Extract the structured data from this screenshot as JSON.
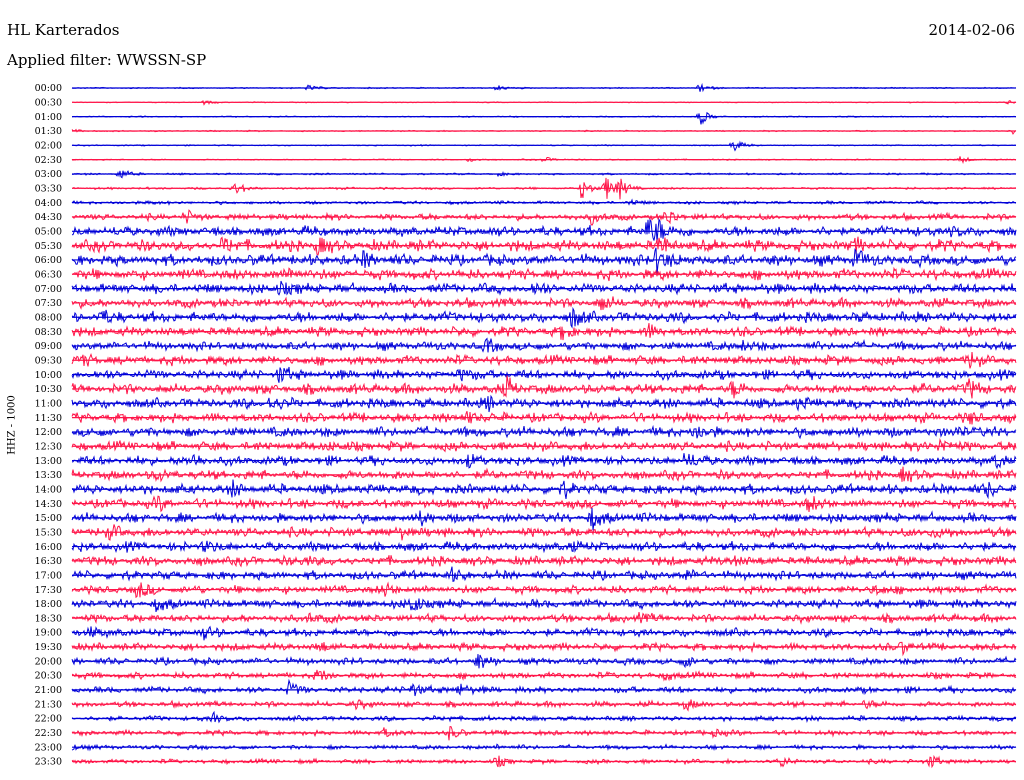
{
  "header": {
    "station": "HL Karterados",
    "date": "2014-02-06",
    "filter_label": "Applied filter: WWSSN-SP"
  },
  "colors": {
    "trace_a": "#0000d8",
    "trace_b": "#ff1448",
    "text": "#000000",
    "background": "#ffffff"
  },
  "chart_data": {
    "type": "line",
    "subtype": "helicorder",
    "title": "HL Karterados",
    "ylabel": "HHZ - 1000",
    "xlabel": "",
    "grid": false,
    "legend": "none",
    "row_minutes": 30,
    "row_labels": [
      "00:00",
      "00:30",
      "01:00",
      "01:30",
      "02:00",
      "02:30",
      "03:00",
      "03:30",
      "04:00",
      "04:30",
      "05:00",
      "05:30",
      "06:00",
      "06:30",
      "07:00",
      "07:30",
      "08:00",
      "08:30",
      "09:00",
      "09:30",
      "10:00",
      "10:30",
      "11:00",
      "11:30",
      "12:00",
      "12:30",
      "13:00",
      "13:30",
      "14:00",
      "14:30",
      "15:00",
      "15:30",
      "16:00",
      "16:30",
      "17:00",
      "17:30",
      "18:00",
      "18:30",
      "19:00",
      "19:30",
      "20:00",
      "20:30",
      "21:00",
      "21:30",
      "22:00",
      "22:30",
      "23:00",
      "23:30"
    ],
    "row_color_cycle": [
      "trace_a",
      "trace_b"
    ],
    "noise_level": [
      0.4,
      0.3,
      0.4,
      0.4,
      0.4,
      0.4,
      0.6,
      0.7,
      1.0,
      2.0,
      3.2,
      3.6,
      3.6,
      3.4,
      3.2,
      3.0,
      3.4,
      3.0,
      2.8,
      3.0,
      3.0,
      3.2,
      3.2,
      3.0,
      3.2,
      3.0,
      3.0,
      3.0,
      3.2,
      3.0,
      3.0,
      3.0,
      3.0,
      3.0,
      2.8,
      2.6,
      2.8,
      2.6,
      2.6,
      2.4,
      2.2,
      2.0,
      2.0,
      1.8,
      1.6,
      1.6,
      1.4,
      1.4
    ],
    "events": [
      {
        "row": 0,
        "t": 0.25,
        "amp": 3
      },
      {
        "row": 0,
        "t": 0.45,
        "amp": 3
      },
      {
        "row": 0,
        "t": 0.665,
        "amp": 4
      },
      {
        "row": 1,
        "t": 0.14,
        "amp": 2
      },
      {
        "row": 1,
        "t": 0.99,
        "amp": 2
      },
      {
        "row": 2,
        "t": 0.665,
        "amp": 9
      },
      {
        "row": 3,
        "t": 0.0,
        "amp": 2
      },
      {
        "row": 3,
        "t": 0.995,
        "amp": 3
      },
      {
        "row": 4,
        "t": 0.7,
        "amp": 7
      },
      {
        "row": 5,
        "t": 0.42,
        "amp": 2
      },
      {
        "row": 5,
        "t": 0.5,
        "amp": 3
      },
      {
        "row": 5,
        "t": 0.94,
        "amp": 4
      },
      {
        "row": 6,
        "t": 0.05,
        "amp": 6
      },
      {
        "row": 6,
        "t": 0.45,
        "amp": 2
      },
      {
        "row": 7,
        "t": 0.17,
        "amp": 3
      },
      {
        "row": 7,
        "t": 0.175,
        "amp": 4
      },
      {
        "row": 7,
        "t": 0.54,
        "amp": 11
      },
      {
        "row": 7,
        "t": 0.565,
        "amp": 13
      },
      {
        "row": 7,
        "t": 0.58,
        "amp": 9
      },
      {
        "row": 8,
        "t": 0.59,
        "amp": 3
      },
      {
        "row": 8,
        "t": 0.08,
        "amp": 2
      },
      {
        "row": 9,
        "t": 0.12,
        "amp": 6
      },
      {
        "row": 9,
        "t": 0.55,
        "amp": 7
      },
      {
        "row": 9,
        "t": 0.63,
        "amp": 8
      },
      {
        "row": 10,
        "t": 0.61,
        "amp": 13
      },
      {
        "row": 10,
        "t": 0.62,
        "amp": 10
      },
      {
        "row": 10,
        "t": 0.93,
        "amp": 4
      },
      {
        "row": 11,
        "t": 0.16,
        "amp": 7
      },
      {
        "row": 11,
        "t": 0.26,
        "amp": 8
      },
      {
        "row": 11,
        "t": 0.62,
        "amp": 9
      },
      {
        "row": 11,
        "t": 0.83,
        "amp": 5
      },
      {
        "row": 12,
        "t": 0.31,
        "amp": 7
      },
      {
        "row": 12,
        "t": 0.62,
        "amp": 14
      },
      {
        "row": 12,
        "t": 0.83,
        "amp": 9
      },
      {
        "row": 13,
        "t": 0.23,
        "amp": 6
      },
      {
        "row": 14,
        "t": 0.22,
        "amp": 7
      },
      {
        "row": 14,
        "t": 0.49,
        "amp": 5
      },
      {
        "row": 15,
        "t": 0.56,
        "amp": 8
      },
      {
        "row": 16,
        "t": 0.53,
        "amp": 9
      },
      {
        "row": 16,
        "t": 0.03,
        "amp": 6
      },
      {
        "row": 17,
        "t": 0.52,
        "amp": 8
      },
      {
        "row": 17,
        "t": 0.61,
        "amp": 6
      },
      {
        "row": 18,
        "t": 0.44,
        "amp": 6
      },
      {
        "row": 18,
        "t": 0.71,
        "amp": 5
      },
      {
        "row": 19,
        "t": 0.95,
        "amp": 7
      },
      {
        "row": 19,
        "t": 0.01,
        "amp": 4
      },
      {
        "row": 20,
        "t": 0.22,
        "amp": 8
      },
      {
        "row": 20,
        "t": 0.41,
        "amp": 6
      },
      {
        "row": 21,
        "t": 0.46,
        "amp": 10
      },
      {
        "row": 21,
        "t": 0.7,
        "amp": 7
      },
      {
        "row": 21,
        "t": 0.95,
        "amp": 8
      },
      {
        "row": 22,
        "t": 0.21,
        "amp": 7
      },
      {
        "row": 22,
        "t": 0.44,
        "amp": 6
      },
      {
        "row": 22,
        "t": 0.77,
        "amp": 5
      },
      {
        "row": 23,
        "t": 0.42,
        "amp": 6
      },
      {
        "row": 23,
        "t": 0.95,
        "amp": 5
      },
      {
        "row": 24,
        "t": 0.66,
        "amp": 7
      },
      {
        "row": 24,
        "t": 0.94,
        "amp": 5
      },
      {
        "row": 25,
        "t": 0.92,
        "amp": 9
      },
      {
        "row": 25,
        "t": 0.27,
        "amp": 5
      },
      {
        "row": 26,
        "t": 0.13,
        "amp": 6
      },
      {
        "row": 26,
        "t": 0.42,
        "amp": 5
      },
      {
        "row": 26,
        "t": 0.65,
        "amp": 8
      },
      {
        "row": 26,
        "t": 0.98,
        "amp": 7
      },
      {
        "row": 27,
        "t": 0.88,
        "amp": 6
      },
      {
        "row": 27,
        "t": 0.09,
        "amp": 5
      },
      {
        "row": 28,
        "t": 0.17,
        "amp": 6
      },
      {
        "row": 28,
        "t": 0.52,
        "amp": 7
      },
      {
        "row": 28,
        "t": 0.97,
        "amp": 6
      },
      {
        "row": 29,
        "t": 0.09,
        "amp": 6
      },
      {
        "row": 29,
        "t": 0.78,
        "amp": 7
      },
      {
        "row": 30,
        "t": 0.55,
        "amp": 10
      },
      {
        "row": 30,
        "t": 0.37,
        "amp": 5
      },
      {
        "row": 31,
        "t": 0.04,
        "amp": 6
      },
      {
        "row": 31,
        "t": 0.35,
        "amp": 5
      },
      {
        "row": 31,
        "t": 0.91,
        "amp": 5
      },
      {
        "row": 32,
        "t": 0.14,
        "amp": 6
      },
      {
        "row": 32,
        "t": 0.53,
        "amp": 5
      },
      {
        "row": 33,
        "t": 0.25,
        "amp": 4
      },
      {
        "row": 33,
        "t": 0.7,
        "amp": 5
      },
      {
        "row": 34,
        "t": 0.4,
        "amp": 6
      },
      {
        "row": 34,
        "t": 0.65,
        "amp": 4
      },
      {
        "row": 35,
        "t": 0.07,
        "amp": 8
      },
      {
        "row": 35,
        "t": 0.33,
        "amp": 6
      },
      {
        "row": 35,
        "t": 0.85,
        "amp": 6
      },
      {
        "row": 36,
        "t": 0.36,
        "amp": 10
      },
      {
        "row": 36,
        "t": 0.09,
        "amp": 5
      },
      {
        "row": 37,
        "t": 0.25,
        "amp": 5
      },
      {
        "row": 37,
        "t": 0.6,
        "amp": 4
      },
      {
        "row": 38,
        "t": 0.02,
        "amp": 6
      },
      {
        "row": 38,
        "t": 0.14,
        "amp": 5
      },
      {
        "row": 39,
        "t": 0.26,
        "amp": 5
      },
      {
        "row": 39,
        "t": 0.88,
        "amp": 6
      },
      {
        "row": 40,
        "t": 0.43,
        "amp": 8
      },
      {
        "row": 40,
        "t": 0.65,
        "amp": 5
      },
      {
        "row": 41,
        "t": 0.26,
        "amp": 6
      },
      {
        "row": 41,
        "t": 0.63,
        "amp": 5
      },
      {
        "row": 42,
        "t": 0.23,
        "amp": 7
      },
      {
        "row": 42,
        "t": 0.36,
        "amp": 8
      },
      {
        "row": 42,
        "t": 0.41,
        "amp": 7
      },
      {
        "row": 43,
        "t": 0.3,
        "amp": 4
      },
      {
        "row": 43,
        "t": 0.65,
        "amp": 5
      },
      {
        "row": 43,
        "t": 0.84,
        "amp": 4
      },
      {
        "row": 44,
        "t": 0.15,
        "amp": 5
      },
      {
        "row": 44,
        "t": 0.4,
        "amp": 2
      },
      {
        "row": 45,
        "t": 0.33,
        "amp": 5
      },
      {
        "row": 45,
        "t": 0.4,
        "amp": 6
      },
      {
        "row": 45,
        "t": 0.68,
        "amp": 4
      },
      {
        "row": 46,
        "t": 0.0,
        "amp": 3
      },
      {
        "row": 46,
        "t": 0.45,
        "amp": 2
      },
      {
        "row": 47,
        "t": 0.45,
        "amp": 5
      },
      {
        "row": 47,
        "t": 0.75,
        "amp": 6
      },
      {
        "row": 47,
        "t": 0.91,
        "amp": 7
      }
    ]
  }
}
